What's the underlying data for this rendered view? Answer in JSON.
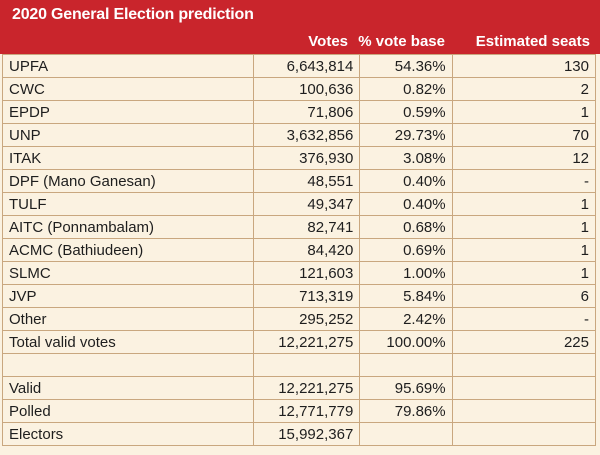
{
  "title": "2020 General Election prediction",
  "headers": {
    "party": "",
    "votes": "Votes",
    "pct": "% vote base",
    "seats": "Estimated seats"
  },
  "rows": [
    {
      "party": "UPFA",
      "votes": "6,643,814",
      "pct": "54.36%",
      "seats": "130"
    },
    {
      "party": "CWC",
      "votes": "100,636",
      "pct": "0.82%",
      "seats": "2"
    },
    {
      "party": "EPDP",
      "votes": "71,806",
      "pct": "0.59%",
      "seats": "1"
    },
    {
      "party": "UNP",
      "votes": "3,632,856",
      "pct": "29.73%",
      "seats": "70"
    },
    {
      "party": "ITAK",
      "votes": "376,930",
      "pct": "3.08%",
      "seats": "12"
    },
    {
      "party": "DPF (Mano Ganesan)",
      "votes": "48,551",
      "pct": "0.40%",
      "seats": "-"
    },
    {
      "party": "TULF",
      "votes": "49,347",
      "pct": "0.40%",
      "seats": "1"
    },
    {
      "party": "AITC (Ponnambalam)",
      "votes": "82,741",
      "pct": "0.68%",
      "seats": "1"
    },
    {
      "party": "ACMC (Bathiudeen)",
      "votes": "84,420",
      "pct": "0.69%",
      "seats": "1"
    },
    {
      "party": "SLMC",
      "votes": "121,603",
      "pct": "1.00%",
      "seats": "1"
    },
    {
      "party": "JVP",
      "votes": "713,319",
      "pct": "5.84%",
      "seats": "6"
    },
    {
      "party": "Other",
      "votes": "295,252",
      "pct": "2.42%",
      "seats": "-"
    }
  ],
  "total": {
    "party": "Total valid votes",
    "votes": "12,221,275",
    "pct": "100.00%",
    "seats": "225"
  },
  "summary": [
    {
      "label": "Valid",
      "votes": "12,221,275",
      "pct": "95.69%",
      "seats": ""
    },
    {
      "label": "Polled",
      "votes": "12,771,779",
      "pct": "79.86%",
      "seats": ""
    },
    {
      "label": "Electors",
      "votes": "15,992,367",
      "pct": "",
      "seats": ""
    }
  ]
}
